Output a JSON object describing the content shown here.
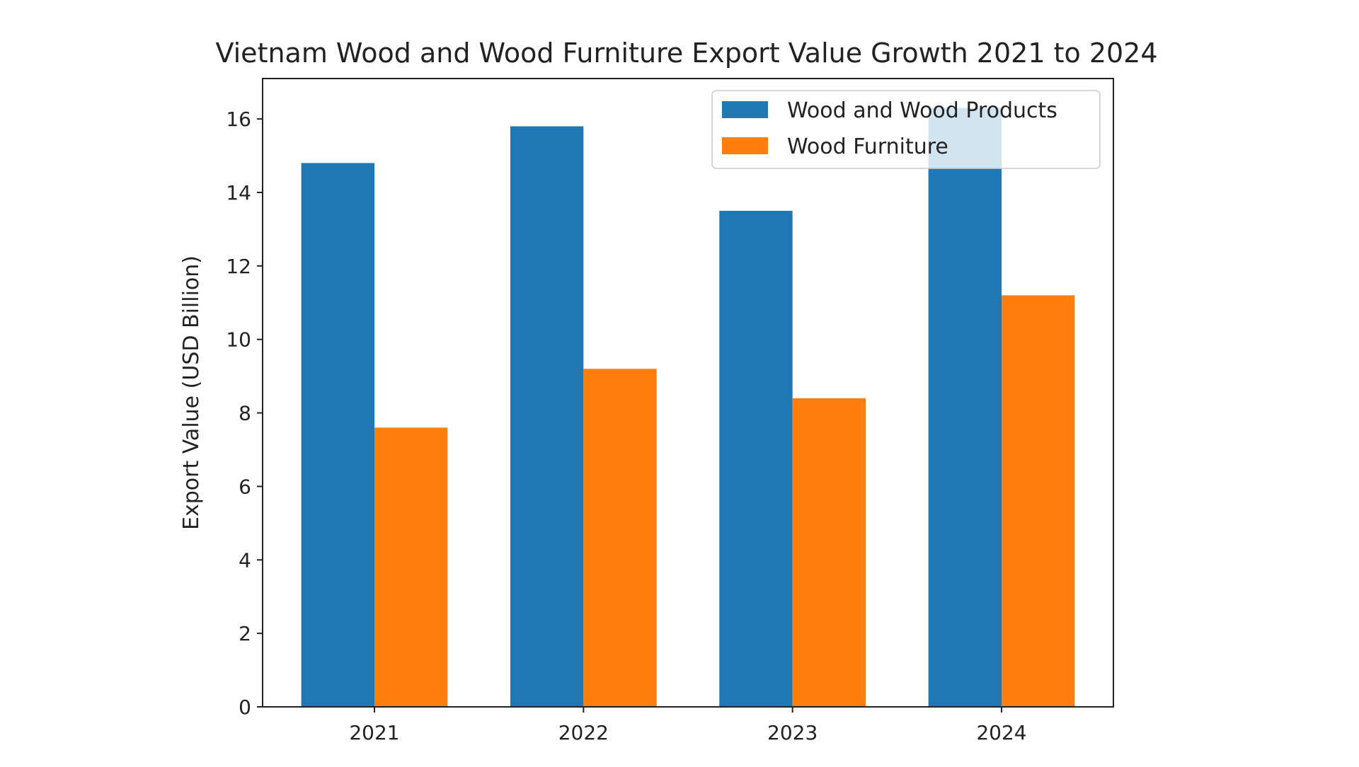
{
  "chart_data": {
    "type": "bar",
    "title": "Vietnam Wood and Wood Furniture Export Value Growth 2021 to 2024",
    "xlabel": "",
    "ylabel": "Export Value (USD Billion)",
    "categories": [
      "2021",
      "2022",
      "2023",
      "2024"
    ],
    "series": [
      {
        "name": "Wood and Wood Products",
        "color": "#1f77b4",
        "values": [
          14.8,
          15.8,
          13.5,
          16.3
        ]
      },
      {
        "name": "Wood Furniture",
        "color": "#ff7f0e",
        "values": [
          7.6,
          9.2,
          8.4,
          11.2
        ]
      }
    ],
    "ylim": [
      0,
      17.1
    ],
    "yticks": [
      0,
      2,
      4,
      6,
      8,
      10,
      12,
      14,
      16
    ],
    "grid": false,
    "legend": "top-right"
  }
}
